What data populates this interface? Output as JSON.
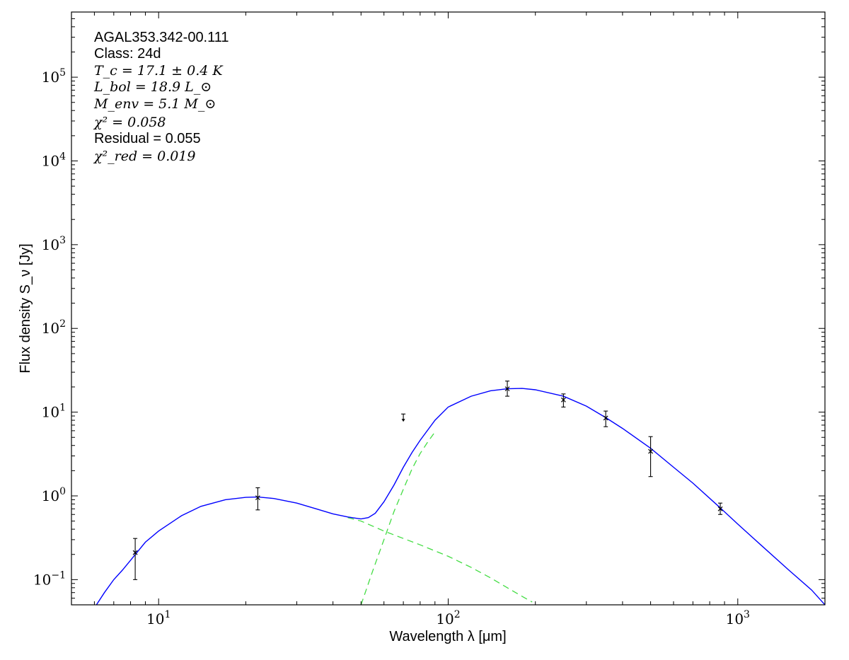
{
  "chart_data": {
    "type": "scatter",
    "title": "",
    "xlabel": "Wavelength λ [μm]",
    "ylabel": "Flux density S_ν [Jy]",
    "xscale": "log",
    "yscale": "log",
    "xlim": [
      5,
      2000
    ],
    "ylim": [
      0.05,
      600000
    ],
    "grid": false,
    "x_ticks": [
      {
        "value": 10,
        "base": "10",
        "exp": "1"
      },
      {
        "value": 100,
        "base": "10",
        "exp": "2"
      },
      {
        "value": 1000,
        "base": "10",
        "exp": "3"
      }
    ],
    "y_ticks": [
      {
        "value": 0.1,
        "base": "10",
        "exp": "−1"
      },
      {
        "value": 1,
        "base": "10",
        "exp": "0"
      },
      {
        "value": 10,
        "base": "10",
        "exp": "1"
      },
      {
        "value": 100,
        "base": "10",
        "exp": "2"
      },
      {
        "value": 1000,
        "base": "10",
        "exp": "3"
      },
      {
        "value": 10000,
        "base": "10",
        "exp": "4"
      },
      {
        "value": 100000,
        "base": "10",
        "exp": "5"
      }
    ],
    "annotations": {
      "source": "AGAL353.342-00.111",
      "class_line": "Class: 24d",
      "tc_line": "T_c = 17.1 ± 0.4 K",
      "lbol_line": "L_bol = 18.9 L_⊙",
      "menv_line": "M_env = 5.1 M_⊙",
      "chi2_line": "χ² = 0.058",
      "residual_line": "Residual = 0.055",
      "chi2red_line": "χ²_red = 0.019"
    },
    "data_points": [
      {
        "x": 8.3,
        "y": 0.21,
        "yerr_low": 0.1,
        "yerr_high": 0.31
      },
      {
        "x": 22,
        "y": 0.95,
        "yerr_low": 0.68,
        "yerr_high": 1.25
      },
      {
        "x": 160,
        "y": 19,
        "yerr_low": 15.5,
        "yerr_high": 23.5
      },
      {
        "x": 250,
        "y": 14,
        "yerr_low": 11.5,
        "yerr_high": 16.5
      },
      {
        "x": 350,
        "y": 8.5,
        "yerr_low": 6.7,
        "yerr_high": 10.3
      },
      {
        "x": 500,
        "y": 3.4,
        "yerr_low": 1.7,
        "yerr_high": 5.1
      },
      {
        "x": 870,
        "y": 0.7,
        "yerr_low": 0.6,
        "yerr_high": 0.82
      }
    ],
    "upper_limits": [
      {
        "x": 70,
        "y": 9.5
      }
    ],
    "model_total": {
      "color": "#0000ff",
      "x": [
        6.1,
        6.5,
        7,
        7.5,
        8,
        9,
        10,
        12,
        14,
        17,
        20,
        22,
        25,
        30,
        35,
        40,
        45,
        50,
        53,
        56,
        60,
        65,
        70,
        75,
        80,
        90,
        100,
        120,
        140,
        160,
        180,
        200,
        250,
        300,
        350,
        400,
        500,
        600,
        700,
        870,
        1000,
        1200,
        1500,
        1800,
        2000
      ],
      "y": [
        0.05,
        0.07,
        0.1,
        0.13,
        0.17,
        0.28,
        0.38,
        0.58,
        0.75,
        0.9,
        0.96,
        0.97,
        0.93,
        0.82,
        0.7,
        0.61,
        0.56,
        0.53,
        0.55,
        0.62,
        0.85,
        1.35,
        2.2,
        3.3,
        4.6,
        8,
        11.5,
        15.5,
        18,
        19,
        19.2,
        18.5,
        15.5,
        11.8,
        8.6,
        6.4,
        3.7,
        2.2,
        1.42,
        0.72,
        0.46,
        0.26,
        0.13,
        0.075,
        0.05
      ]
    },
    "model_components": [
      {
        "color": "#44dd44",
        "dashed": true,
        "x": [
          45,
          50,
          60,
          70,
          80,
          100,
          120,
          140,
          160,
          180,
          195
        ],
        "y": [
          0.55,
          0.5,
          0.38,
          0.31,
          0.26,
          0.19,
          0.14,
          0.105,
          0.08,
          0.063,
          0.054
        ]
      },
      {
        "color": "#44dd44",
        "dashed": true,
        "x": [
          50,
          55,
          60,
          65,
          70,
          75,
          80,
          85,
          90
        ],
        "y": [
          0.05,
          0.13,
          0.3,
          0.65,
          1.2,
          2.1,
          3.2,
          4.4,
          5.8
        ]
      }
    ]
  }
}
